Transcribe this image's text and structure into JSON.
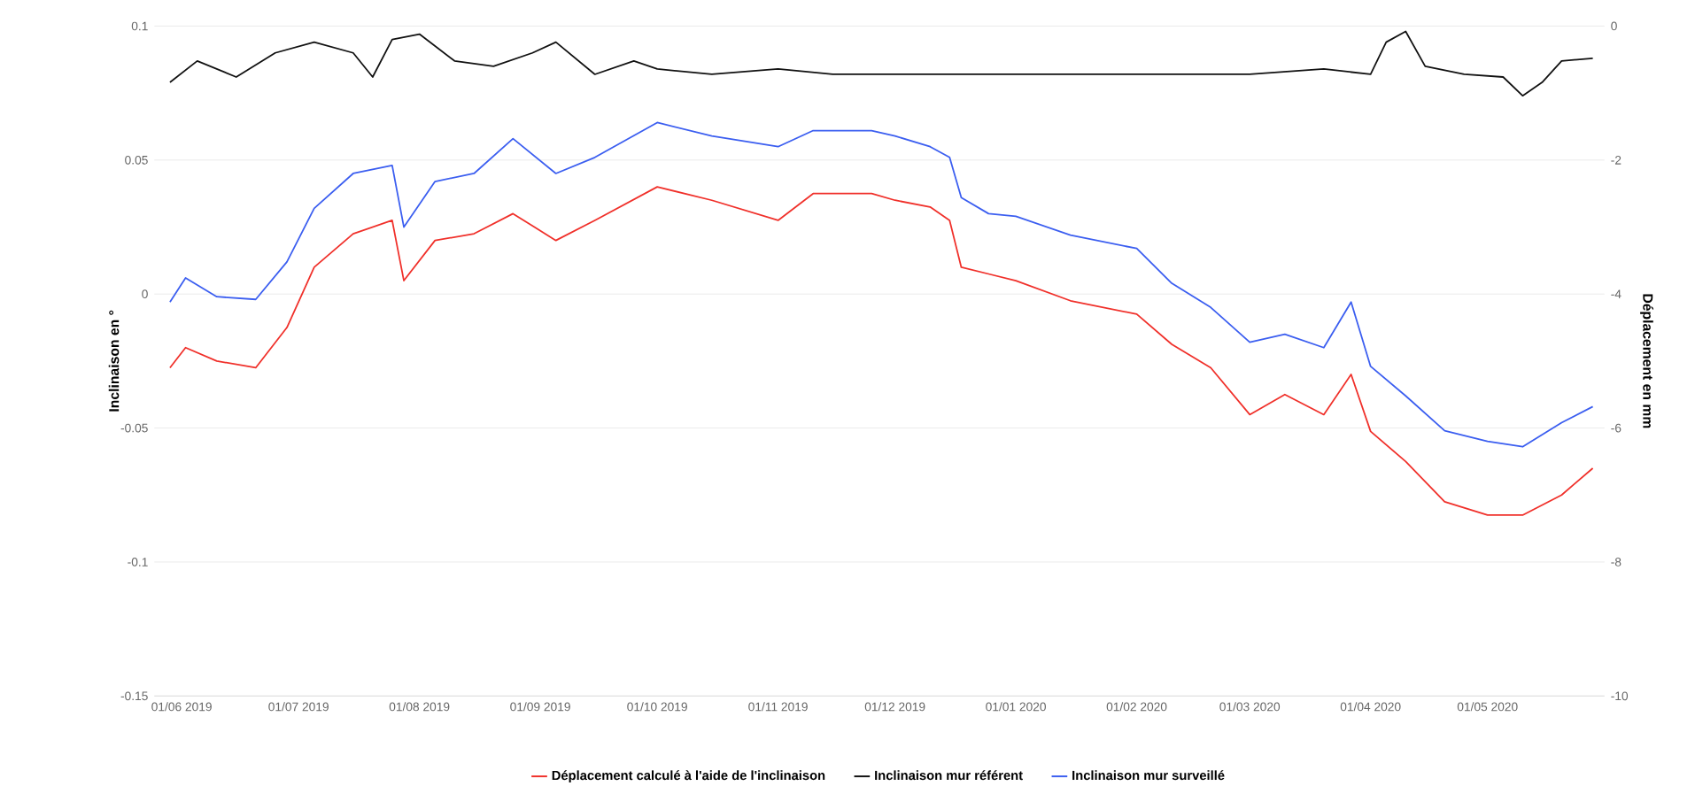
{
  "chart_data": {
    "type": "line",
    "xlim": [
      "2019-05-25",
      "2020-05-31"
    ],
    "xticks": [
      {
        "value": "2019-06-01",
        "label": "01/06 2019"
      },
      {
        "value": "2019-07-01",
        "label": "01/07 2019"
      },
      {
        "value": "2019-08-01",
        "label": "01/08 2019"
      },
      {
        "value": "2019-09-01",
        "label": "01/09 2019"
      },
      {
        "value": "2019-10-01",
        "label": "01/10 2019"
      },
      {
        "value": "2019-11-01",
        "label": "01/11 2019"
      },
      {
        "value": "2019-12-01",
        "label": "01/12 2019"
      },
      {
        "value": "2020-01-01",
        "label": "01/01 2020"
      },
      {
        "value": "2020-02-01",
        "label": "01/02 2020"
      },
      {
        "value": "2020-03-01",
        "label": "01/03 2020"
      },
      {
        "value": "2020-04-01",
        "label": "01/04 2020"
      },
      {
        "value": "2020-05-01",
        "label": "01/05 2020"
      }
    ],
    "ylim": [
      -0.15,
      0.1
    ],
    "yticks": [
      -0.15,
      -0.1,
      -0.05,
      0,
      0.05,
      0.1
    ],
    "y2lim": [
      -10,
      0
    ],
    "y2ticks": [
      -10,
      -8,
      -6,
      -4,
      -2,
      0
    ],
    "ylabel": "Inclinaison en °",
    "y2label": "Déplacement en mm",
    "grid": "y",
    "legend": "bottom",
    "series": [
      {
        "name": "Déplacement calculé à l'aide de l'inclinaison",
        "color": "#f0302a",
        "axis": "y2",
        "x": [
          "2019-05-29",
          "2019-06-02",
          "2019-06-10",
          "2019-06-20",
          "2019-06-28",
          "2019-07-05",
          "2019-07-15",
          "2019-07-25",
          "2019-07-28",
          "2019-08-05",
          "2019-08-15",
          "2019-08-25",
          "2019-09-05",
          "2019-09-15",
          "2019-10-01",
          "2019-10-15",
          "2019-11-01",
          "2019-11-10",
          "2019-11-25",
          "2019-12-01",
          "2019-12-10",
          "2019-12-15",
          "2019-12-18",
          "2019-12-25",
          "2020-01-01",
          "2020-01-15",
          "2020-02-01",
          "2020-02-10",
          "2020-02-20",
          "2020-03-01",
          "2020-03-10",
          "2020-03-20",
          "2020-03-27",
          "2020-04-01",
          "2020-04-10",
          "2020-04-20",
          "2020-05-01",
          "2020-05-10",
          "2020-05-20",
          "2020-05-28"
        ],
        "values": [
          -5.1,
          -4.8,
          -5.0,
          -5.1,
          -4.5,
          -3.6,
          -3.1,
          -2.9,
          -3.8,
          -3.2,
          -3.1,
          -2.8,
          -3.2,
          -2.9,
          -2.4,
          -2.6,
          -2.9,
          -2.5,
          -2.5,
          -2.6,
          -2.7,
          -2.9,
          -3.6,
          -3.7,
          -3.8,
          -4.1,
          -4.3,
          -4.75,
          -5.1,
          -5.8,
          -5.5,
          -5.8,
          -5.2,
          -6.05,
          -6.5,
          -7.1,
          -7.3,
          -7.3,
          -7.0,
          -6.6
        ]
      },
      {
        "name": "Inclinaison mur référent",
        "color": "#111111",
        "x": [
          "2019-05-29",
          "2019-06-05",
          "2019-06-15",
          "2019-06-25",
          "2019-07-05",
          "2019-07-15",
          "2019-07-20",
          "2019-07-25",
          "2019-08-01",
          "2019-08-10",
          "2019-08-20",
          "2019-08-30",
          "2019-09-05",
          "2019-09-15",
          "2019-09-25",
          "2019-10-01",
          "2019-10-15",
          "2019-11-01",
          "2019-11-15",
          "2019-12-01",
          "2020-01-01",
          "2020-02-01",
          "2020-03-01",
          "2020-03-20",
          "2020-04-01",
          "2020-04-05",
          "2020-04-10",
          "2020-04-15",
          "2020-04-25",
          "2020-05-05",
          "2020-05-10",
          "2020-05-15",
          "2020-05-20",
          "2020-05-28"
        ],
        "values": [
          0.079,
          0.087,
          0.081,
          0.09,
          0.094,
          0.09,
          0.081,
          0.095,
          0.097,
          0.087,
          0.085,
          0.09,
          0.094,
          0.082,
          0.087,
          0.084,
          0.082,
          0.084,
          0.082,
          0.082,
          0.082,
          0.082,
          0.082,
          0.084,
          0.082,
          0.094,
          0.098,
          0.085,
          0.082,
          0.081,
          0.074,
          0.079,
          0.087,
          0.088
        ]
      },
      {
        "name": "Inclinaison mur surveillé",
        "color": "#3b5ef0",
        "x": [
          "2019-05-29",
          "2019-06-02",
          "2019-06-10",
          "2019-06-20",
          "2019-06-28",
          "2019-07-05",
          "2019-07-15",
          "2019-07-25",
          "2019-07-28",
          "2019-08-05",
          "2019-08-15",
          "2019-08-25",
          "2019-09-05",
          "2019-09-15",
          "2019-10-01",
          "2019-10-15",
          "2019-11-01",
          "2019-11-10",
          "2019-11-25",
          "2019-12-01",
          "2019-12-10",
          "2019-12-15",
          "2019-12-18",
          "2019-12-25",
          "2020-01-01",
          "2020-01-15",
          "2020-02-01",
          "2020-02-10",
          "2020-02-20",
          "2020-03-01",
          "2020-03-10",
          "2020-03-20",
          "2020-03-27",
          "2020-04-01",
          "2020-04-10",
          "2020-04-20",
          "2020-05-01",
          "2020-05-10",
          "2020-05-20",
          "2020-05-28"
        ],
        "values": [
          -0.003,
          0.006,
          -0.001,
          -0.002,
          0.012,
          0.032,
          0.045,
          0.048,
          0.025,
          0.042,
          0.045,
          0.058,
          0.045,
          0.051,
          0.064,
          0.059,
          0.055,
          0.061,
          0.061,
          0.059,
          0.055,
          0.051,
          0.036,
          0.03,
          0.029,
          0.022,
          0.017,
          0.004,
          -0.005,
          -0.018,
          -0.015,
          -0.02,
          -0.003,
          -0.027,
          -0.038,
          -0.051,
          -0.055,
          -0.057,
          -0.048,
          -0.042
        ]
      }
    ]
  }
}
